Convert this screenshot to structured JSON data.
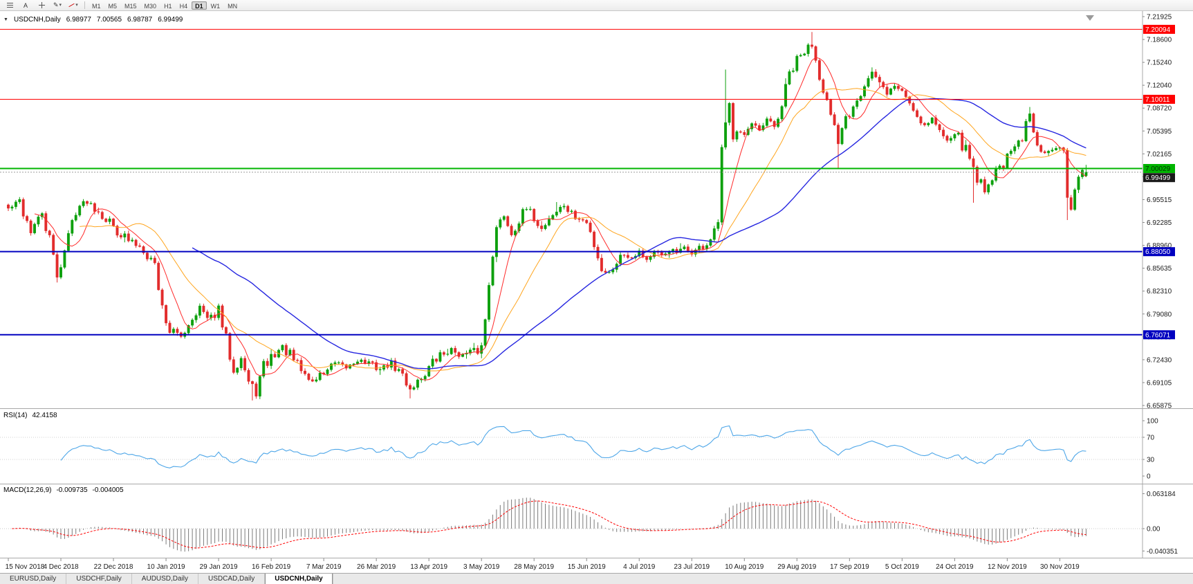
{
  "toolbar": {
    "timeframes": [
      "M1",
      "M5",
      "M15",
      "M30",
      "H1",
      "H4",
      "D1",
      "W1",
      "MN"
    ],
    "active_timeframe": "D1",
    "cursor_label": "A",
    "dropdown_icon": "▾",
    "pencil_icon": "✎"
  },
  "chart": {
    "symbol_label": "USDCNH,Daily",
    "collapse_icon": "▼",
    "ohlc": {
      "open": "6.98977",
      "high": "7.00565",
      "low": "6.98787",
      "close": "6.99499"
    }
  },
  "rsi": {
    "label": "RSI(14)",
    "value": "42.4158",
    "axis_labels": [
      "100",
      "70",
      "30",
      "0"
    ],
    "axis_values": [
      100,
      70,
      30,
      0
    ],
    "dotted_levels": [
      70,
      30
    ],
    "color": "#4DA6E8"
  },
  "macd": {
    "label": "MACD(12,26,9)",
    "value_macd": "-0.009735",
    "value_signal": "-0.004005",
    "axis_labels": [
      "0.063184",
      "0.00",
      "-0.040351"
    ],
    "axis_values": [
      0.063184,
      0,
      -0.040351
    ],
    "histogram_color": "#7a7a7a",
    "signal_color": "#FF0000"
  },
  "tabs": {
    "active": "USDCNH,Daily",
    "items": [
      {
        "label": "EURUSD,Daily"
      },
      {
        "label": "USDCHF,Daily"
      },
      {
        "label": "AUDUSD,Daily"
      },
      {
        "label": "USDCAD,Daily"
      },
      {
        "label": "USDCNH,Daily"
      }
    ]
  },
  "chart_data": {
    "type": "candlestick",
    "title": "USDCNH,Daily",
    "ylim": [
      6.65875,
      7.21925
    ],
    "y_axis_labels": [
      "7.21925",
      "7.18600",
      "7.15240",
      "7.12040",
      "7.08720",
      "7.05395",
      "7.02165",
      "6.98845",
      "6.95515",
      "6.92285",
      "6.88960",
      "6.85635",
      "6.82310",
      "6.79080",
      "6.75760",
      "6.72430",
      "6.69105",
      "6.65875"
    ],
    "x_labels": [
      "15 Nov 2018",
      "4 Dec 2018",
      "22 Dec 2018",
      "10 Jan 2019",
      "29 Jan 2019",
      "16 Feb 2019",
      "7 Mar 2019",
      "26 Mar 2019",
      "13 Apr 2019",
      "3 May 2019",
      "28 May 2019",
      "15 Jun 2019",
      "4 Jul 2019",
      "23 Jul 2019",
      "10 Aug 2019",
      "29 Aug 2019",
      "17 Sep 2019",
      "5 Oct 2019",
      "24 Oct 2019",
      "12 Nov 2019",
      "30 Nov 2019"
    ],
    "bars_per_label": 14,
    "bar_count": 288,
    "x_start": 12,
    "bar_step": 5.43,
    "bar_width": 3.4,
    "seed": 42,
    "colors": {
      "up": "#0EA00E",
      "down": "#E22C2C"
    },
    "moving_averages": [
      {
        "name": "ma-fast-red",
        "period": 8,
        "color": "#FF2A2A",
        "width": 1
      },
      {
        "name": "ma-mid-orange",
        "period": 20,
        "color": "#FFA51E",
        "width": 1
      },
      {
        "name": "ma-slow-blue",
        "period": 50,
        "color": "#2626E0",
        "width": 1.4
      }
    ],
    "hlines": [
      {
        "price": 7.20094,
        "label": "7.20094",
        "color": "#FF0000",
        "width": 1,
        "text_color": "#ffffff"
      },
      {
        "price": 7.10011,
        "label": "7.10011",
        "color": "#FF0000",
        "width": 1,
        "text_color": "#ffffff"
      },
      {
        "price": 7.00029,
        "label": "7.00029",
        "color": "#00B500",
        "width": 2,
        "text_color": "#003300"
      },
      {
        "price": 6.8805,
        "label": "6.88050",
        "color": "#0000C0",
        "width": 2,
        "text_color": "#ffffff"
      },
      {
        "price": 6.76071,
        "label": "6.76071",
        "color": "#0000C0",
        "width": 2,
        "text_color": "#ffffff"
      }
    ],
    "current_price": {
      "price": 6.99499,
      "label": "6.99499",
      "tag_bg": "#1a1a1a",
      "tag_fg": "#ffffff"
    },
    "last_bar": {
      "open": 6.98977,
      "high": 7.00565,
      "low": 6.98787,
      "close": 6.99499
    },
    "anchors": [
      [
        0,
        6.942
      ],
      [
        3,
        6.953
      ],
      [
        6,
        6.91
      ],
      [
        9,
        6.936
      ],
      [
        11,
        6.896
      ],
      [
        13,
        6.846
      ],
      [
        15,
        6.882
      ],
      [
        18,
        6.944
      ],
      [
        21,
        6.953
      ],
      [
        24,
        6.941
      ],
      [
        28,
        6.917
      ],
      [
        32,
        6.896
      ],
      [
        36,
        6.886
      ],
      [
        39,
        6.862
      ],
      [
        41,
        6.8
      ],
      [
        43,
        6.768
      ],
      [
        46,
        6.758
      ],
      [
        48,
        6.779
      ],
      [
        51,
        6.801
      ],
      [
        53,
        6.783
      ],
      [
        56,
        6.793
      ],
      [
        58,
        6.753
      ],
      [
        60,
        6.713
      ],
      [
        62,
        6.729
      ],
      [
        64,
        6.691
      ],
      [
        66,
        6.679
      ],
      [
        68,
        6.713
      ],
      [
        70,
        6.729
      ],
      [
        73,
        6.743
      ],
      [
        76,
        6.723
      ],
      [
        79,
        6.703
      ],
      [
        81,
        6.693
      ],
      [
        84,
        6.707
      ],
      [
        87,
        6.719
      ],
      [
        90,
        6.713
      ],
      [
        93,
        6.725
      ],
      [
        96,
        6.719
      ],
      [
        99,
        6.711
      ],
      [
        102,
        6.719
      ],
      [
        105,
        6.701
      ],
      [
        107,
        6.683
      ],
      [
        109,
        6.693
      ],
      [
        112,
        6.713
      ],
      [
        115,
        6.731
      ],
      [
        118,
        6.739
      ],
      [
        121,
        6.731
      ],
      [
        124,
        6.737
      ],
      [
        126,
        6.743
      ],
      [
        127,
        6.783
      ],
      [
        128,
        6.839
      ],
      [
        129,
        6.883
      ],
      [
        130,
        6.911
      ],
      [
        132,
        6.933
      ],
      [
        134,
        6.906
      ],
      [
        136,
        6.927
      ],
      [
        138,
        6.941
      ],
      [
        140,
        6.931
      ],
      [
        142,
        6.913
      ],
      [
        144,
        6.929
      ],
      [
        146,
        6.939
      ],
      [
        148,
        6.947
      ],
      [
        150,
        6.933
      ],
      [
        152,
        6.927
      ],
      [
        154,
        6.921
      ],
      [
        156,
        6.893
      ],
      [
        158,
        6.857
      ],
      [
        160,
        6.849
      ],
      [
        162,
        6.869
      ],
      [
        164,
        6.877
      ],
      [
        166,
        6.873
      ],
      [
        168,
        6.881
      ],
      [
        170,
        6.869
      ],
      [
        172,
        6.879
      ],
      [
        174,
        6.873
      ],
      [
        176,
        6.883
      ],
      [
        178,
        6.879
      ],
      [
        180,
        6.885
      ],
      [
        182,
        6.879
      ],
      [
        184,
        6.885
      ],
      [
        186,
        6.891
      ],
      [
        188,
        6.903
      ],
      [
        189,
        6.923
      ],
      [
        190,
        7.023
      ],
      [
        191,
        7.059
      ],
      [
        192,
        7.089
      ],
      [
        193,
        7.046
      ],
      [
        194,
        7.063
      ],
      [
        196,
        7.049
      ],
      [
        198,
        7.063
      ],
      [
        200,
        7.053
      ],
      [
        202,
        7.069
      ],
      [
        204,
        7.059
      ],
      [
        206,
        7.091
      ],
      [
        208,
        7.136
      ],
      [
        210,
        7.153
      ],
      [
        212,
        7.169
      ],
      [
        214,
        7.183
      ],
      [
        215,
        7.159
      ],
      [
        217,
        7.119
      ],
      [
        219,
        7.073
      ],
      [
        221,
        7.033
      ],
      [
        222,
        7.059
      ],
      [
        224,
        7.083
      ],
      [
        226,
        7.106
      ],
      [
        228,
        7.123
      ],
      [
        230,
        7.139
      ],
      [
        232,
        7.119
      ],
      [
        234,
        7.109
      ],
      [
        236,
        7.119
      ],
      [
        238,
        7.113
      ],
      [
        240,
        7.096
      ],
      [
        242,
        7.079
      ],
      [
        244,
        7.063
      ],
      [
        246,
        7.073
      ],
      [
        248,
        7.053
      ],
      [
        250,
        7.043
      ],
      [
        252,
        7.053
      ],
      [
        254,
        7.036
      ],
      [
        256,
        7.016
      ],
      [
        258,
        6.989
      ],
      [
        260,
        6.969
      ],
      [
        262,
        6.989
      ],
      [
        264,
        7.003
      ],
      [
        266,
        7.013
      ],
      [
        268,
        7.029
      ],
      [
        270,
        7.039
      ],
      [
        271,
        7.063
      ],
      [
        272,
        7.079
      ],
      [
        273,
        7.059
      ],
      [
        274,
        7.043
      ],
      [
        275,
        7.033
      ],
      [
        276,
        7.029
      ],
      [
        278,
        7.026
      ],
      [
        280,
        7.029
      ],
      [
        281,
        7.016
      ],
      [
        282,
        6.969
      ],
      [
        283,
        6.943
      ],
      [
        284,
        6.973
      ],
      [
        285,
        6.993
      ],
      [
        286,
        6.998
      ],
      [
        287,
        6.99499
      ]
    ],
    "wicks": [
      [
        13,
        "low",
        6.836
      ],
      [
        65,
        "low",
        6.666
      ],
      [
        107,
        "low",
        6.669
      ],
      [
        146,
        "high",
        6.952
      ],
      [
        191,
        "high",
        7.143
      ],
      [
        214,
        "high",
        7.197
      ],
      [
        221,
        "low",
        7.001
      ],
      [
        257,
        "low",
        6.951
      ],
      [
        272,
        "high",
        7.089
      ],
      [
        282,
        "low",
        6.926
      ]
    ]
  }
}
